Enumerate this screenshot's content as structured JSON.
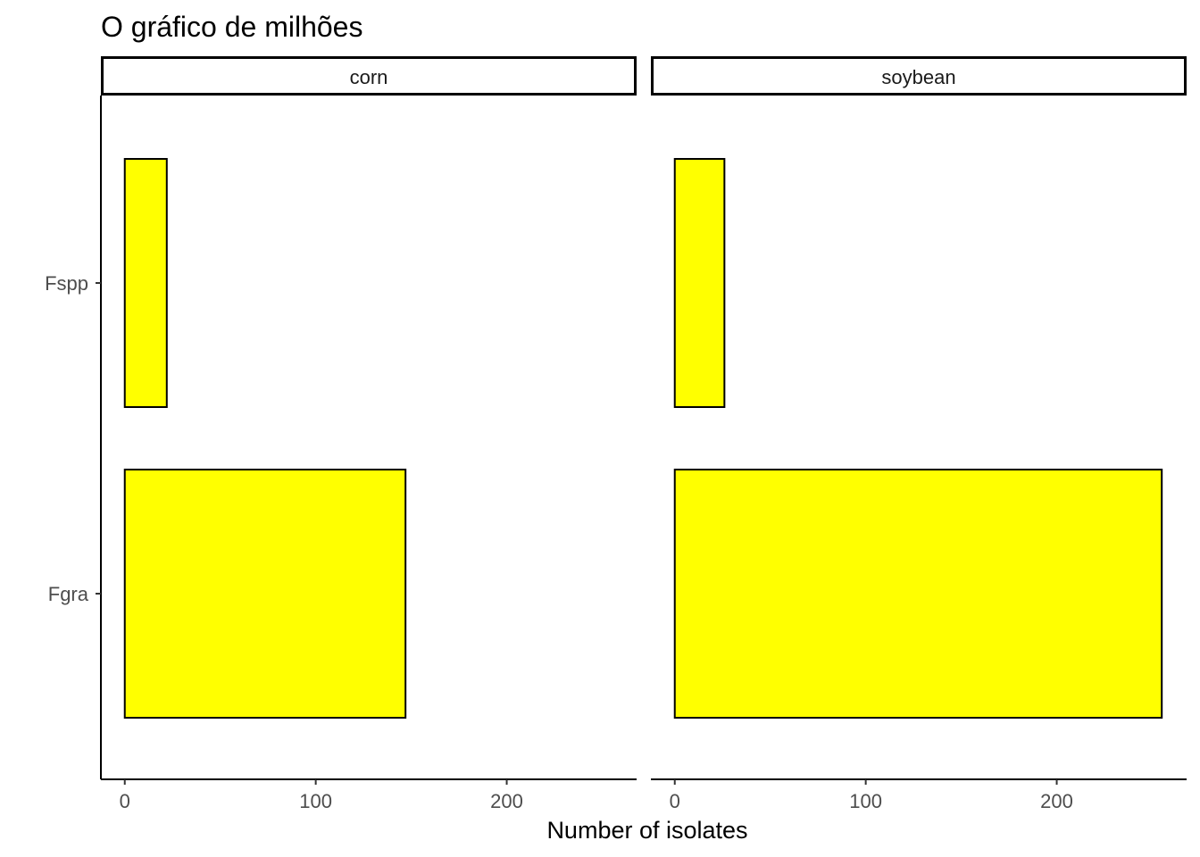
{
  "chart_data": {
    "type": "bar",
    "orientation": "horizontal",
    "title": "O gráfico de milhões",
    "xlabel": "Number of isolates",
    "ylabel": "",
    "xlim": [
      -12.5,
      268
    ],
    "x_ticks": [
      0,
      100,
      200
    ],
    "categories": [
      "Fspp",
      "Fgra"
    ],
    "bar_color": "#ffff00",
    "bar_outline": "#000000",
    "grid": false,
    "legend": "none",
    "facets": [
      {
        "name": "corn",
        "values": [
          22,
          147
        ]
      },
      {
        "name": "soybean",
        "values": [
          26,
          255
        ]
      }
    ]
  }
}
